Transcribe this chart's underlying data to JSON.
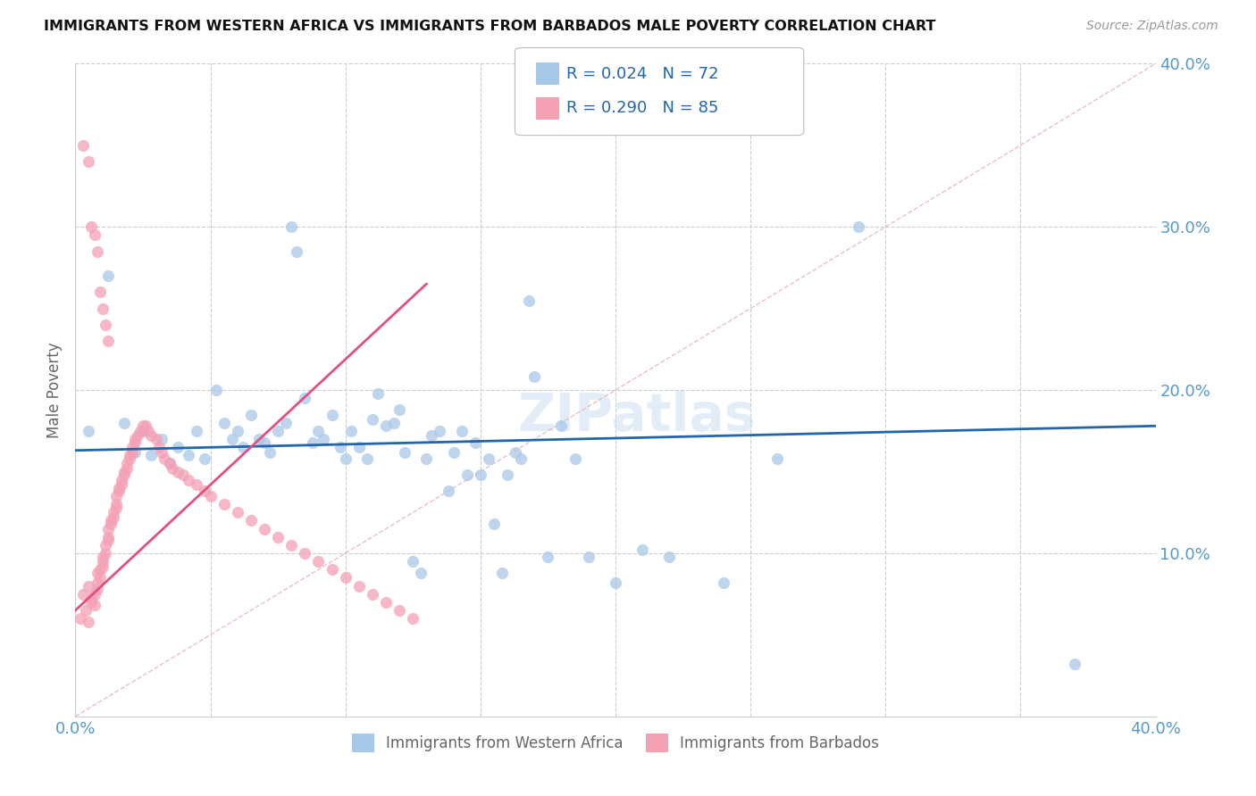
{
  "title": "IMMIGRANTS FROM WESTERN AFRICA VS IMMIGRANTS FROM BARBADOS MALE POVERTY CORRELATION CHART",
  "source": "Source: ZipAtlas.com",
  "ylabel": "Male Poverty",
  "xlim": [
    0,
    0.4
  ],
  "ylim": [
    0,
    0.4
  ],
  "yticks": [
    0.1,
    0.2,
    0.3,
    0.4
  ],
  "ytick_labels": [
    "10.0%",
    "20.0%",
    "30.0%",
    "40.0%"
  ],
  "xticks": [
    0.0,
    0.05,
    0.1,
    0.15,
    0.2,
    0.25,
    0.3,
    0.35,
    0.4
  ],
  "color_blue": "#a8c8e8",
  "color_pink": "#f4a0b5",
  "color_trend_blue": "#2166ac",
  "color_trend_pink": "#e05080",
  "color_diagonal": "#e8b0b0",
  "color_axis_text": "#5599cc",
  "western_africa_x": [
    0.005,
    0.012,
    0.018,
    0.022,
    0.025,
    0.028,
    0.032,
    0.035,
    0.038,
    0.042,
    0.045,
    0.048,
    0.052,
    0.055,
    0.058,
    0.06,
    0.062,
    0.065,
    0.068,
    0.07,
    0.072,
    0.075,
    0.078,
    0.08,
    0.082,
    0.085,
    0.088,
    0.09,
    0.092,
    0.095,
    0.098,
    0.1,
    0.102,
    0.105,
    0.108,
    0.11,
    0.112,
    0.115,
    0.118,
    0.12,
    0.122,
    0.125,
    0.128,
    0.13,
    0.132,
    0.135,
    0.138,
    0.14,
    0.143,
    0.145,
    0.148,
    0.15,
    0.153,
    0.155,
    0.158,
    0.16,
    0.163,
    0.165,
    0.168,
    0.17,
    0.175,
    0.18,
    0.185,
    0.19,
    0.2,
    0.21,
    0.22,
    0.24,
    0.26,
    0.29,
    0.37
  ],
  "western_africa_y": [
    0.175,
    0.27,
    0.18,
    0.162,
    0.175,
    0.16,
    0.17,
    0.155,
    0.165,
    0.16,
    0.175,
    0.158,
    0.2,
    0.18,
    0.17,
    0.175,
    0.165,
    0.185,
    0.17,
    0.168,
    0.162,
    0.175,
    0.18,
    0.3,
    0.285,
    0.195,
    0.168,
    0.175,
    0.17,
    0.185,
    0.165,
    0.158,
    0.175,
    0.165,
    0.158,
    0.182,
    0.198,
    0.178,
    0.18,
    0.188,
    0.162,
    0.095,
    0.088,
    0.158,
    0.172,
    0.175,
    0.138,
    0.162,
    0.175,
    0.148,
    0.168,
    0.148,
    0.158,
    0.118,
    0.088,
    0.148,
    0.162,
    0.158,
    0.255,
    0.208,
    0.098,
    0.178,
    0.158,
    0.098,
    0.082,
    0.102,
    0.098,
    0.082,
    0.158,
    0.3,
    0.032
  ],
  "barbados_x": [
    0.002,
    0.003,
    0.004,
    0.005,
    0.005,
    0.006,
    0.006,
    0.007,
    0.007,
    0.008,
    0.008,
    0.008,
    0.009,
    0.009,
    0.01,
    0.01,
    0.01,
    0.011,
    0.011,
    0.012,
    0.012,
    0.012,
    0.013,
    0.013,
    0.014,
    0.014,
    0.015,
    0.015,
    0.015,
    0.016,
    0.016,
    0.017,
    0.017,
    0.018,
    0.018,
    0.019,
    0.019,
    0.02,
    0.02,
    0.021,
    0.021,
    0.022,
    0.022,
    0.023,
    0.024,
    0.025,
    0.026,
    0.027,
    0.028,
    0.03,
    0.031,
    0.032,
    0.033,
    0.035,
    0.036,
    0.038,
    0.04,
    0.042,
    0.045,
    0.048,
    0.05,
    0.055,
    0.06,
    0.065,
    0.07,
    0.075,
    0.08,
    0.085,
    0.09,
    0.095,
    0.1,
    0.105,
    0.11,
    0.115,
    0.12,
    0.125,
    0.003,
    0.005,
    0.006,
    0.007,
    0.008,
    0.009,
    0.01,
    0.011,
    0.012
  ],
  "barbados_y": [
    0.06,
    0.075,
    0.065,
    0.058,
    0.08,
    0.07,
    0.072,
    0.068,
    0.075,
    0.078,
    0.082,
    0.088,
    0.085,
    0.09,
    0.092,
    0.095,
    0.098,
    0.1,
    0.105,
    0.108,
    0.11,
    0.115,
    0.118,
    0.12,
    0.122,
    0.125,
    0.128,
    0.13,
    0.135,
    0.138,
    0.14,
    0.142,
    0.145,
    0.148,
    0.15,
    0.152,
    0.155,
    0.158,
    0.16,
    0.162,
    0.165,
    0.168,
    0.17,
    0.172,
    0.175,
    0.178,
    0.178,
    0.175,
    0.172,
    0.17,
    0.165,
    0.162,
    0.158,
    0.155,
    0.152,
    0.15,
    0.148,
    0.145,
    0.142,
    0.138,
    0.135,
    0.13,
    0.125,
    0.12,
    0.115,
    0.11,
    0.105,
    0.1,
    0.095,
    0.09,
    0.085,
    0.08,
    0.075,
    0.07,
    0.065,
    0.06,
    0.35,
    0.34,
    0.3,
    0.295,
    0.285,
    0.26,
    0.25,
    0.24,
    0.23
  ],
  "trend_blue_x0": 0.0,
  "trend_blue_x1": 0.4,
  "trend_blue_y0": 0.163,
  "trend_blue_y1": 0.178,
  "trend_pink_x0": 0.0,
  "trend_pink_x1": 0.13,
  "trend_pink_y0": 0.065,
  "trend_pink_y1": 0.265
}
